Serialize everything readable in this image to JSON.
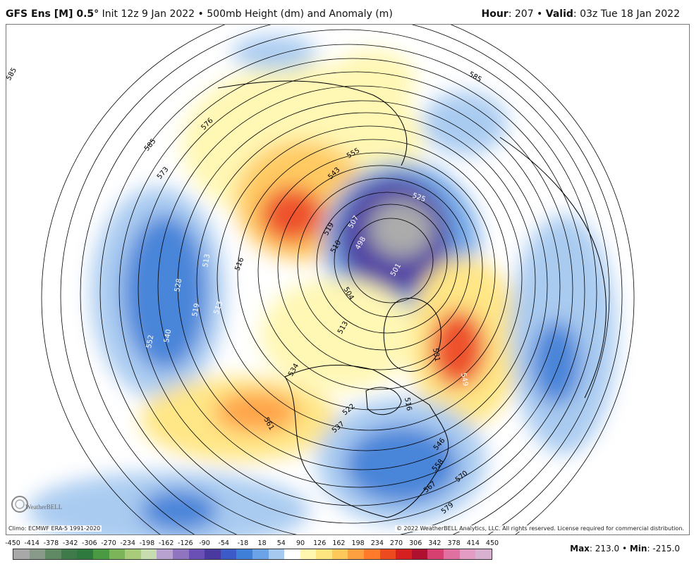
{
  "header": {
    "model": "GFS Ens [M] 0.5",
    "degree": "°",
    "init": " Init 12z 9 Jan 2022",
    "bullet": " • ",
    "product": "500mb Height (dm) and Anomaly (m)",
    "hour_label": "Hour",
    "hour_value": ": 207",
    "valid_label": "Valid",
    "valid_value": ": 03z Tue 18 Jan 2022"
  },
  "footer": {
    "climo": "Climo: ECMWF ERA-5 1991-2020",
    "copyright": "© 2022 WeatherBELL Analytics, LLC. All rights reserved. License required for commercial distribution.",
    "max_label": "Max",
    "max_value": ": 213.0",
    "min_label": "Min",
    "min_value": ": -215.0",
    "logo_text": "WeatherBELL"
  },
  "colorbar": {
    "labels": [
      "-450",
      "-414",
      "-378",
      "-342",
      "-306",
      "-270",
      "-234",
      "-198",
      "-162",
      "-126",
      "-90",
      "-54",
      "-18",
      "18",
      "54",
      "90",
      "126",
      "162",
      "198",
      "234",
      "270",
      "306",
      "342",
      "378",
      "414",
      "450"
    ],
    "colors": [
      "#a8a8a8",
      "#8a9a8a",
      "#5f8a64",
      "#3f7a4a",
      "#2e7a3e",
      "#4a9a44",
      "#7cb45a",
      "#a8cc7a",
      "#c7ddb0",
      "#b8a2cf",
      "#8f75c0",
      "#6a4fb5",
      "#4a3aa0",
      "#3c5ac8",
      "#3f7fd8",
      "#6aa3e6",
      "#a6c9f0",
      "#ffffff",
      "#fff7b0",
      "#ffe580",
      "#ffc85a",
      "#ffa040",
      "#ff7a2a",
      "#ee4a20",
      "#d62020",
      "#b01030",
      "#d64070",
      "#e070a0",
      "#e59cc4",
      "#d8b0d0"
    ]
  },
  "map": {
    "height_labels": [
      "585",
      "573",
      "576",
      "585",
      "552",
      "540",
      "528",
      "519",
      "513",
      "513",
      "516",
      "534",
      "561",
      "543",
      "519",
      "510",
      "498",
      "507",
      "501",
      "504",
      "513",
      "525",
      "531",
      "549",
      "546",
      "558",
      "567",
      "570",
      "579",
      "585",
      "555",
      "522",
      "537",
      "516"
    ]
  },
  "colors": {
    "cold": "#3f7fd8",
    "cold_deep": "#4a3aa0",
    "warm": "#ffa040",
    "warm_deep": "#ee4a20"
  }
}
